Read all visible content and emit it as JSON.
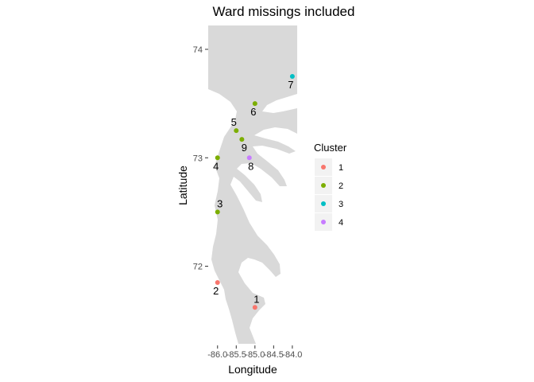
{
  "chart_data": {
    "type": "scatter",
    "title": "Ward missings included",
    "xlabel": "Longitude",
    "ylabel": "Latitude",
    "xlim": [
      -86.25,
      -83.87
    ],
    "ylim": [
      71.27,
      74.22
    ],
    "x_ticks": [
      -86.0,
      -85.5,
      -85.0,
      -84.5,
      -84.0
    ],
    "x_tick_labels": [
      "-86.0",
      "-85.5",
      "-85.0",
      "-84.5",
      "-84.0"
    ],
    "y_ticks": [
      72,
      73,
      74
    ],
    "y_tick_labels": [
      "72",
      "73",
      "74"
    ],
    "legend": {
      "title": "Cluster",
      "position": "right",
      "entries": [
        {
          "label": "1",
          "color": "#F8766D"
        },
        {
          "label": "2",
          "color": "#7CAE00"
        },
        {
          "label": "3",
          "color": "#00BFC4"
        },
        {
          "label": "4",
          "color": "#C77CFF"
        }
      ]
    },
    "points": [
      {
        "label": "1",
        "x": -85.0,
        "y": 71.62,
        "cluster": "1"
      },
      {
        "label": "2",
        "x": -86.0,
        "y": 71.85,
        "cluster": "1"
      },
      {
        "label": "3",
        "x": -86.0,
        "y": 72.5,
        "cluster": "2"
      },
      {
        "label": "4",
        "x": -86.0,
        "y": 73.0,
        "cluster": "2"
      },
      {
        "label": "5",
        "x": -85.5,
        "y": 73.25,
        "cluster": "2"
      },
      {
        "label": "6",
        "x": -85.0,
        "y": 73.5,
        "cluster": "2"
      },
      {
        "label": "7",
        "x": -84.0,
        "y": 73.75,
        "cluster": "3"
      },
      {
        "label": "8",
        "x": -85.15,
        "y": 73.0,
        "cluster": "4"
      },
      {
        "label": "9",
        "x": -85.35,
        "y": 73.17,
        "cluster": "2"
      }
    ],
    "colors": {
      "land": "#D9D9D9",
      "background": "#FFFFFF",
      "tick": "#333333"
    }
  }
}
